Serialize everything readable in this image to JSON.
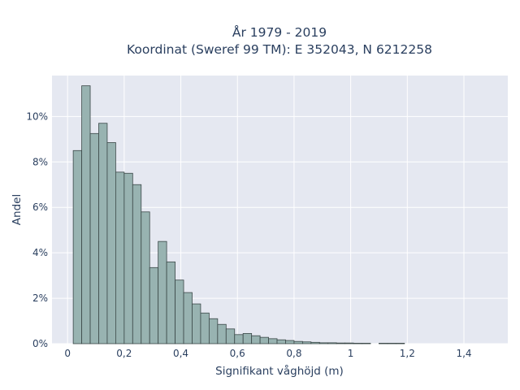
{
  "chart_data": {
    "type": "bar",
    "title": [
      "År 1979 - 2019",
      "Koordinat (Sweref 99 TM): E 352043, N 6212258"
    ],
    "xlabel": "Signifikant våghöjd (m)",
    "ylabel": "Andel",
    "xlim": [
      -0.055,
      1.555
    ],
    "ylim": [
      0,
      11.8
    ],
    "x_ticks": [
      0,
      0.2,
      0.4,
      0.6,
      0.8,
      1.0,
      1.2,
      1.4
    ],
    "x_tick_labels": [
      "0",
      "0,2",
      "0,4",
      "0,6",
      "0,8",
      "1",
      "1,2",
      "1,4"
    ],
    "y_ticks": [
      0,
      2,
      4,
      6,
      8,
      10
    ],
    "y_tick_labels": [
      "0%",
      "2%",
      "4%",
      "6%",
      "8%",
      "10%"
    ],
    "bin_width": 0.03,
    "bin_start": 0.02,
    "values": [
      8.5,
      11.35,
      9.25,
      9.7,
      8.85,
      7.55,
      7.5,
      7.0,
      5.8,
      3.35,
      4.5,
      3.6,
      2.8,
      2.25,
      1.75,
      1.35,
      1.1,
      0.85,
      0.65,
      0.4,
      0.45,
      0.35,
      0.28,
      0.22,
      0.17,
      0.14,
      0.1,
      0.08,
      0.06,
      0.04,
      0.04,
      0.03,
      0.03,
      0.02,
      0.02,
      0.0,
      0.02,
      0.02,
      0.02
    ],
    "grid": true,
    "colors": {
      "bar_fill": "#98b3b1",
      "bar_edge": "#3b4848",
      "plot_bg": "#e5e8f1",
      "grid": "#ffffff",
      "text": "#2a3f5f"
    }
  }
}
